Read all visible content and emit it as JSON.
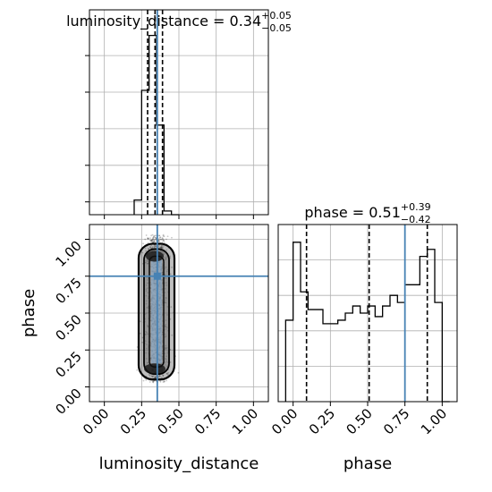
{
  "chart_data": [
    {
      "type": "histogram",
      "parameter": "luminosity_distance",
      "title": {
        "main": "luminosity_distance = 0.34",
        "plus": "+0.05",
        "minus": "−0.05"
      },
      "xlim": [
        -0.1,
        1.1
      ],
      "bins": {
        "edges": [
          0.2,
          0.25,
          0.3,
          0.35,
          0.4,
          0.45,
          0.5
        ],
        "counts": [
          0.08,
          0.68,
          0.98,
          0.49,
          0.02,
          0.0
        ]
      },
      "quantiles": [
        0.29,
        0.34,
        0.39
      ],
      "injection": 0.355,
      "grid": true
    },
    {
      "type": "scatter",
      "xparam": "luminosity_distance",
      "yparam": "phase",
      "xlim": [
        -0.1,
        1.1
      ],
      "ylim": [
        -0.1,
        1.1
      ],
      "xticks": [
        "0.00",
        "0.25",
        "0.50",
        "0.75",
        "1.00"
      ],
      "yticks": [
        "0.00",
        "0.25",
        "0.50",
        "0.75",
        "1.00"
      ],
      "xlabel": "luminosity_distance",
      "ylabel": "phase",
      "injection": {
        "x": 0.355,
        "y": 0.75
      },
      "density_region": {
        "x": [
          0.25,
          0.45
        ],
        "y": [
          0.03,
          1.03
        ]
      },
      "grid": true
    },
    {
      "type": "histogram",
      "parameter": "phase",
      "title": {
        "main": "phase = 0.51",
        "plus": "+0.39",
        "minus": "−0.42"
      },
      "xlim": [
        -0.1,
        1.1
      ],
      "xticks": [
        "0.00",
        "0.25",
        "0.50",
        "0.75",
        "1.00"
      ],
      "xlabel": "phase",
      "bins": {
        "edges": [
          -0.05,
          0.0,
          0.05,
          0.1,
          0.15,
          0.2,
          0.25,
          0.3,
          0.35,
          0.4,
          0.45,
          0.5,
          0.55,
          0.6,
          0.65,
          0.7,
          0.75,
          0.8,
          0.85,
          0.9,
          0.95,
          1.0,
          1.05
        ],
        "counts": [
          0.46,
          0.9,
          0.62,
          0.52,
          0.52,
          0.44,
          0.44,
          0.46,
          0.5,
          0.54,
          0.5,
          0.54,
          0.48,
          0.54,
          0.6,
          0.56,
          0.66,
          0.66,
          0.82,
          0.86,
          0.56,
          0.0
        ]
      },
      "quantiles": [
        0.09,
        0.51,
        0.9
      ],
      "injection": 0.75,
      "grid": true
    }
  ]
}
